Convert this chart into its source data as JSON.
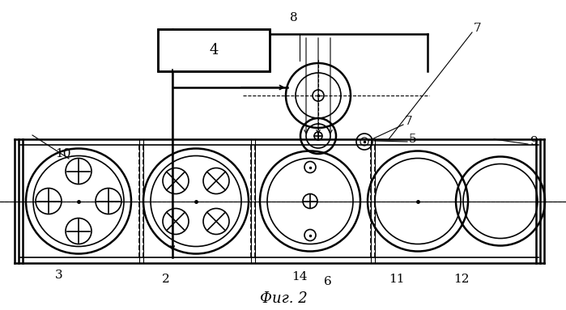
{
  "bg_color": "#ffffff",
  "line_color": "#000000",
  "title": "Фиг. 2",
  "title_fontsize": 13,
  "fig_width": 6.99,
  "fig_height": 3.83,
  "dpi": 100
}
